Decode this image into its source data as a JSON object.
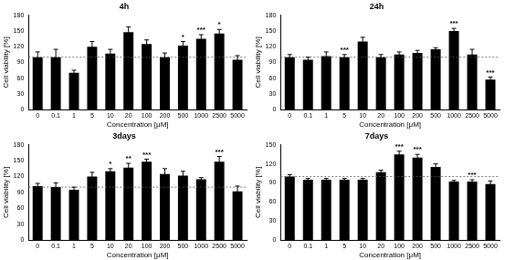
{
  "chart_data": [
    {
      "type": "bar",
      "title": "4h",
      "x_label": "Concentration [μM]",
      "y_label": "Cell viability [%]",
      "categories": [
        "0",
        "0.1",
        "1",
        "5",
        "10",
        "20",
        "100",
        "200",
        "500",
        "1000",
        "2500",
        "5000"
      ],
      "values": [
        100,
        100,
        70,
        120,
        107,
        148,
        125,
        100,
        122,
        135,
        145,
        95
      ],
      "errors": [
        10,
        15,
        5,
        10,
        8,
        10,
        8,
        8,
        8,
        8,
        8,
        8
      ],
      "annotations": [
        null,
        null,
        null,
        null,
        null,
        null,
        null,
        null,
        "*",
        "***",
        "*",
        null
      ],
      "reference_line": 100,
      "color": "#000000",
      "ylim": [
        0,
        180
      ],
      "yticks": [
        0,
        30,
        60,
        90,
        120,
        150,
        180
      ],
      "grid": false
    },
    {
      "type": "bar",
      "title": "24h",
      "x_label": "Concentration [μM]",
      "y_label": "Cell viability [%]",
      "categories": [
        "0",
        "0.1",
        "1",
        "5",
        "10",
        "20",
        "100",
        "200",
        "500",
        "1000",
        "2500",
        "5000"
      ],
      "values": [
        100,
        95,
        102,
        100,
        130,
        100,
        105,
        108,
        115,
        150,
        105,
        57
      ],
      "errors": [
        5,
        5,
        8,
        5,
        8,
        5,
        5,
        5,
        3,
        5,
        10,
        5
      ],
      "annotations": [
        null,
        null,
        null,
        "***",
        null,
        null,
        null,
        null,
        null,
        "***",
        null,
        "***"
      ],
      "reference_line": 100,
      "color": "#000000",
      "ylim": [
        0,
        180
      ],
      "yticks": [
        0,
        30,
        60,
        90,
        120,
        150,
        180
      ],
      "grid": false
    },
    {
      "type": "bar",
      "title": "3days",
      "x_label": "Concentration [μM]",
      "y_label": "Cell viability [%]",
      "categories": [
        "0",
        "0.1",
        "1",
        "5",
        "10",
        "20",
        "100",
        "200",
        "500",
        "1000",
        "2500",
        "5000"
      ],
      "values": [
        102,
        100,
        95,
        120,
        130,
        137,
        148,
        125,
        122,
        115,
        148,
        92
      ],
      "errors": [
        5,
        8,
        5,
        8,
        5,
        8,
        5,
        10,
        8,
        3,
        10,
        10
      ],
      "annotations": [
        null,
        null,
        null,
        null,
        "*",
        "**",
        "***",
        null,
        null,
        null,
        "***",
        null
      ],
      "reference_line": 100,
      "color": "#000000",
      "ylim": [
        0,
        180
      ],
      "yticks": [
        0,
        30,
        60,
        90,
        120,
        150,
        180
      ],
      "grid": false
    },
    {
      "type": "bar",
      "title": "7days",
      "x_label": "Concentration [μM]",
      "y_label": "Cell viability [%]",
      "categories": [
        "0",
        "0.1",
        "1",
        "5",
        "10",
        "20",
        "100",
        "200",
        "500",
        "1000",
        "2500",
        "5000"
      ],
      "values": [
        100,
        95,
        95,
        95,
        95,
        107,
        135,
        130,
        115,
        92,
        92,
        88
      ],
      "errors": [
        3,
        2,
        2,
        2,
        2,
        3,
        5,
        5,
        5,
        2,
        3,
        5
      ],
      "annotations": [
        null,
        null,
        null,
        null,
        null,
        null,
        "***",
        "***",
        null,
        null,
        "***",
        null
      ],
      "reference_line": 100,
      "color": "#000000",
      "ylim": [
        0,
        150
      ],
      "yticks": [
        0,
        30,
        60,
        90,
        120,
        150
      ],
      "grid": false
    }
  ]
}
